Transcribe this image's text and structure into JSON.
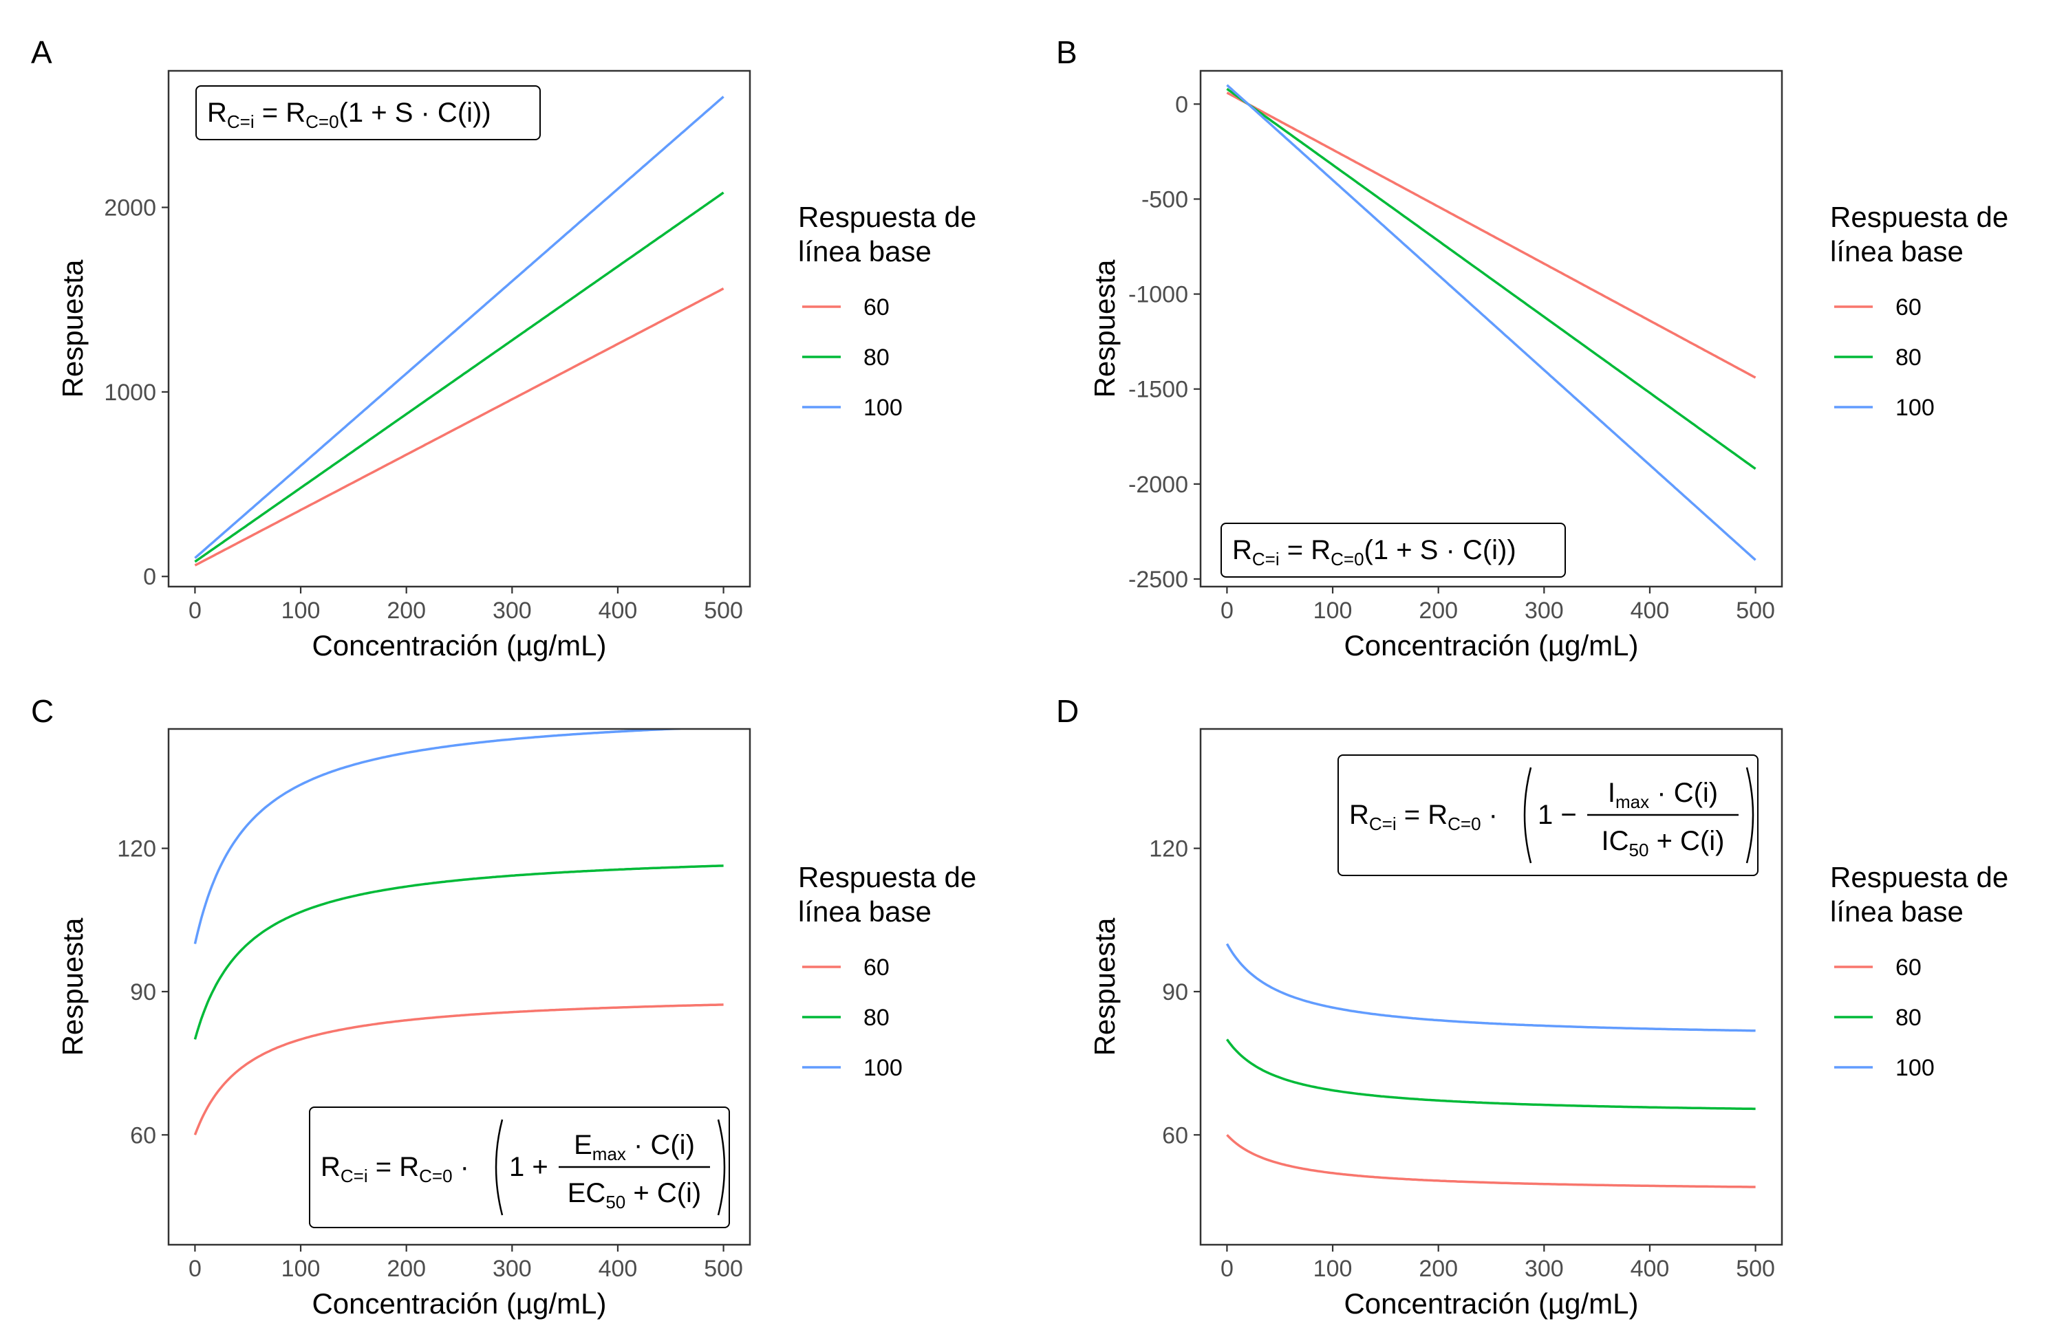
{
  "colors": {
    "s60": "#F8766D",
    "s80": "#00BA38",
    "s100": "#619CFF"
  },
  "chart_data": [
    {
      "panel": "A",
      "type": "line",
      "xlabel": "Concentración (µg/mL)",
      "ylabel": "Respuesta",
      "xlim": [
        -25,
        525
      ],
      "ylim": [
        -55,
        2740
      ],
      "xticks": [
        0,
        100,
        200,
        300,
        400,
        500
      ],
      "yticks": [
        0,
        1000,
        2000
      ],
      "ytick_labels": [
        "0",
        "1000",
        "2000"
      ],
      "legend": {
        "title_line1": "Respuesta de",
        "title_line2": "línea base",
        "position": "right"
      },
      "equation": {
        "kind": "linear",
        "position": "top-left"
      },
      "series": [
        {
          "name": "60",
          "color": "#F8766D",
          "model": {
            "kind": "linear",
            "base": 60,
            "slope": 0.05
          },
          "x": [
            0,
            100,
            200,
            300,
            400,
            500
          ],
          "values": [
            60,
            360,
            660,
            960,
            1260,
            1560
          ]
        },
        {
          "name": "80",
          "color": "#00BA38",
          "model": {
            "kind": "linear",
            "base": 80,
            "slope": 0.05
          },
          "x": [
            0,
            100,
            200,
            300,
            400,
            500
          ],
          "values": [
            80,
            480,
            880,
            1280,
            1680,
            2080
          ]
        },
        {
          "name": "100",
          "color": "#619CFF",
          "model": {
            "kind": "linear",
            "base": 100,
            "slope": 0.05
          },
          "x": [
            0,
            100,
            200,
            300,
            400,
            500
          ],
          "values": [
            100,
            600,
            1100,
            1600,
            2100,
            2600
          ]
        }
      ]
    },
    {
      "panel": "B",
      "type": "line",
      "xlabel": "Concentración (µg/mL)",
      "ylabel": "Respuesta",
      "xlim": [
        -25,
        525
      ],
      "ylim": [
        -2540,
        175
      ],
      "xticks": [
        0,
        100,
        200,
        300,
        400,
        500
      ],
      "yticks": [
        0,
        -500,
        -1000,
        -1500,
        -2000,
        -2500
      ],
      "ytick_labels": [
        "0",
        "-500",
        "-1000",
        "-1500",
        "-2000",
        "-2500"
      ],
      "legend": {
        "title_line1": "Respuesta de",
        "title_line2": "línea base",
        "position": "right"
      },
      "equation": {
        "kind": "linear",
        "position": "bottom-left"
      },
      "series": [
        {
          "name": "60",
          "color": "#F8766D",
          "model": {
            "kind": "linear",
            "base": 60,
            "slope": -0.05
          },
          "x": [
            0,
            100,
            200,
            300,
            400,
            500
          ],
          "values": [
            60,
            -240,
            -540,
            -840,
            -1140,
            -1440
          ]
        },
        {
          "name": "80",
          "color": "#00BA38",
          "model": {
            "kind": "linear",
            "base": 80,
            "slope": -0.05
          },
          "x": [
            0,
            100,
            200,
            300,
            400,
            500
          ],
          "values": [
            80,
            -320,
            -720,
            -1120,
            -1520,
            -1920
          ]
        },
        {
          "name": "100",
          "color": "#619CFF",
          "model": {
            "kind": "linear",
            "base": 100,
            "slope": -0.05
          },
          "x": [
            0,
            100,
            200,
            300,
            400,
            500
          ],
          "values": [
            100,
            -400,
            -900,
            -1400,
            -1900,
            -2400
          ]
        }
      ]
    },
    {
      "panel": "C",
      "type": "line",
      "xlabel": "Concentración (µg/mL)",
      "ylabel": "Respuesta",
      "xlim": [
        -25,
        525
      ],
      "ylim": [
        37,
        145
      ],
      "xticks": [
        0,
        100,
        200,
        300,
        400,
        500
      ],
      "yticks": [
        60,
        90,
        120
      ],
      "ytick_labels": [
        "60",
        "90",
        "120"
      ],
      "legend": {
        "title_line1": "Respuesta de",
        "title_line2": "línea base",
        "position": "right"
      },
      "equation": {
        "kind": "emax",
        "position": "bottom-right"
      },
      "series": [
        {
          "name": "60",
          "color": "#F8766D",
          "model": {
            "kind": "emax",
            "base": 60,
            "emax": 0.5,
            "ec50": 50
          },
          "x": [
            0,
            50,
            100,
            200,
            300,
            400,
            500
          ],
          "values": [
            60,
            75,
            80,
            84,
            85.7,
            86.7,
            87.3
          ]
        },
        {
          "name": "80",
          "color": "#00BA38",
          "model": {
            "kind": "emax",
            "base": 80,
            "emax": 0.5,
            "ec50": 50
          },
          "x": [
            0,
            50,
            100,
            200,
            300,
            400,
            500
          ],
          "values": [
            80,
            100,
            106.7,
            112,
            114.3,
            115.6,
            116.4
          ]
        },
        {
          "name": "100",
          "color": "#619CFF",
          "model": {
            "kind": "emax",
            "base": 100,
            "emax": 0.5,
            "ec50": 50
          },
          "x": [
            0,
            50,
            100,
            200,
            300,
            400,
            500
          ],
          "values": [
            100,
            125,
            133.3,
            140,
            142.9,
            144.4,
            145.5
          ]
        }
      ]
    },
    {
      "panel": "D",
      "type": "line",
      "xlabel": "Concentración (µg/mL)",
      "ylabel": "Respuesta",
      "xlim": [
        -25,
        525
      ],
      "ylim": [
        37,
        145
      ],
      "xticks": [
        0,
        100,
        200,
        300,
        400,
        500
      ],
      "yticks": [
        60,
        90,
        120
      ],
      "ytick_labels": [
        "60",
        "90",
        "120"
      ],
      "legend": {
        "title_line1": "Respuesta de",
        "title_line2": "línea base",
        "position": "right"
      },
      "equation": {
        "kind": "imax",
        "position": "top-right"
      },
      "series": [
        {
          "name": "60",
          "color": "#F8766D",
          "model": {
            "kind": "imax",
            "base": 60,
            "imax": 0.2,
            "ic50": 50
          },
          "x": [
            0,
            50,
            100,
            200,
            300,
            400,
            500
          ],
          "values": [
            60,
            54,
            52,
            50.4,
            49.7,
            49.3,
            49.1
          ]
        },
        {
          "name": "80",
          "color": "#00BA38",
          "model": {
            "kind": "imax",
            "base": 80,
            "imax": 0.2,
            "ic50": 50
          },
          "x": [
            0,
            50,
            100,
            200,
            300,
            400,
            500
          ],
          "values": [
            80,
            72,
            69.3,
            67.2,
            66.3,
            65.8,
            65.5
          ]
        },
        {
          "name": "100",
          "color": "#619CFF",
          "model": {
            "kind": "imax",
            "base": 100,
            "imax": 0.2,
            "ic50": 50
          },
          "x": [
            0,
            50,
            100,
            200,
            300,
            400,
            500
          ],
          "values": [
            100,
            90,
            86.7,
            84,
            82.9,
            82.2,
            81.8
          ]
        }
      ]
    }
  ]
}
